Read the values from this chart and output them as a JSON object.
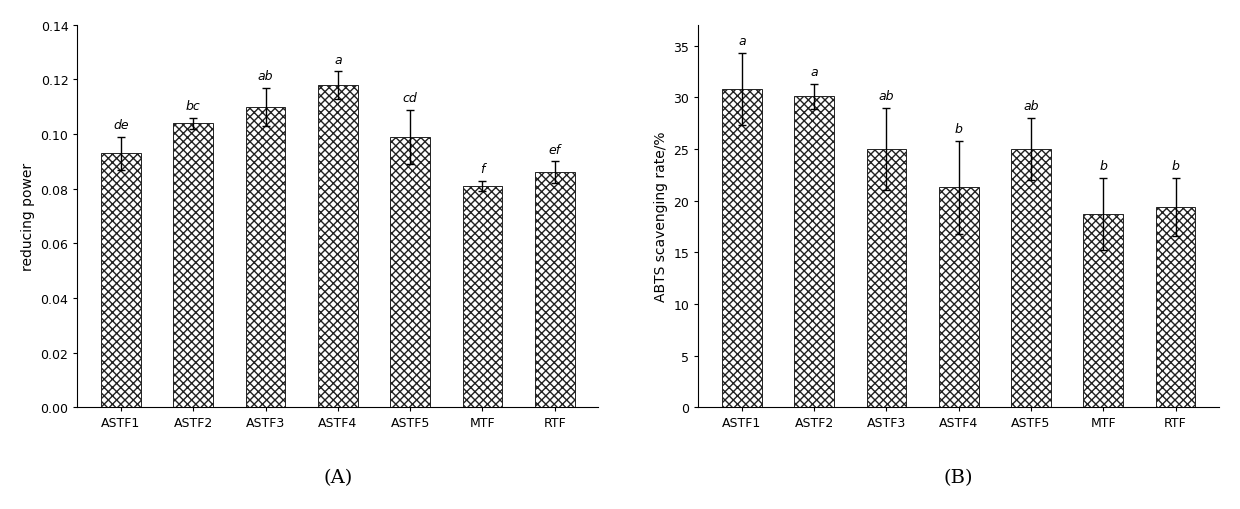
{
  "categories": [
    "ASTF1",
    "ASTF2",
    "ASTF3",
    "ASTF4",
    "ASTF5",
    "MTF",
    "RTF"
  ],
  "chart_A": {
    "values": [
      0.093,
      0.104,
      0.11,
      0.118,
      0.099,
      0.081,
      0.086
    ],
    "errors": [
      0.006,
      0.002,
      0.007,
      0.005,
      0.01,
      0.002,
      0.004
    ],
    "labels": [
      "de",
      "bc",
      "ab",
      "a",
      "cd",
      "f",
      "ef"
    ],
    "ylabel": "reducing power",
    "ylim": [
      0,
      0.14
    ],
    "yticks": [
      0.0,
      0.02,
      0.04,
      0.06,
      0.08,
      0.1,
      0.12,
      0.14
    ],
    "panel_label": "(A)"
  },
  "chart_B": {
    "values": [
      30.8,
      30.1,
      25.0,
      21.3,
      25.0,
      18.7,
      19.4
    ],
    "errors": [
      3.5,
      1.2,
      4.0,
      4.5,
      3.0,
      3.5,
      2.8
    ],
    "labels": [
      "a",
      "a",
      "ab",
      "b",
      "ab",
      "b",
      "b"
    ],
    "ylabel": "ABTS scavenging rate/%",
    "ylim": [
      0,
      37
    ],
    "yticks": [
      0,
      5,
      10,
      15,
      20,
      25,
      30,
      35
    ],
    "panel_label": "(B)"
  },
  "bar_color": "#ffffff",
  "bar_edgecolor": "#222222",
  "hatch": "xxxx",
  "bar_width": 0.55,
  "figsize": [
    12.4,
    5.1
  ],
  "dpi": 100,
  "label_fontsize": 9,
  "tick_fontsize": 9,
  "axis_label_fontsize": 10,
  "panel_label_fontsize": 14,
  "capsize": 3,
  "elinewidth": 1.0
}
